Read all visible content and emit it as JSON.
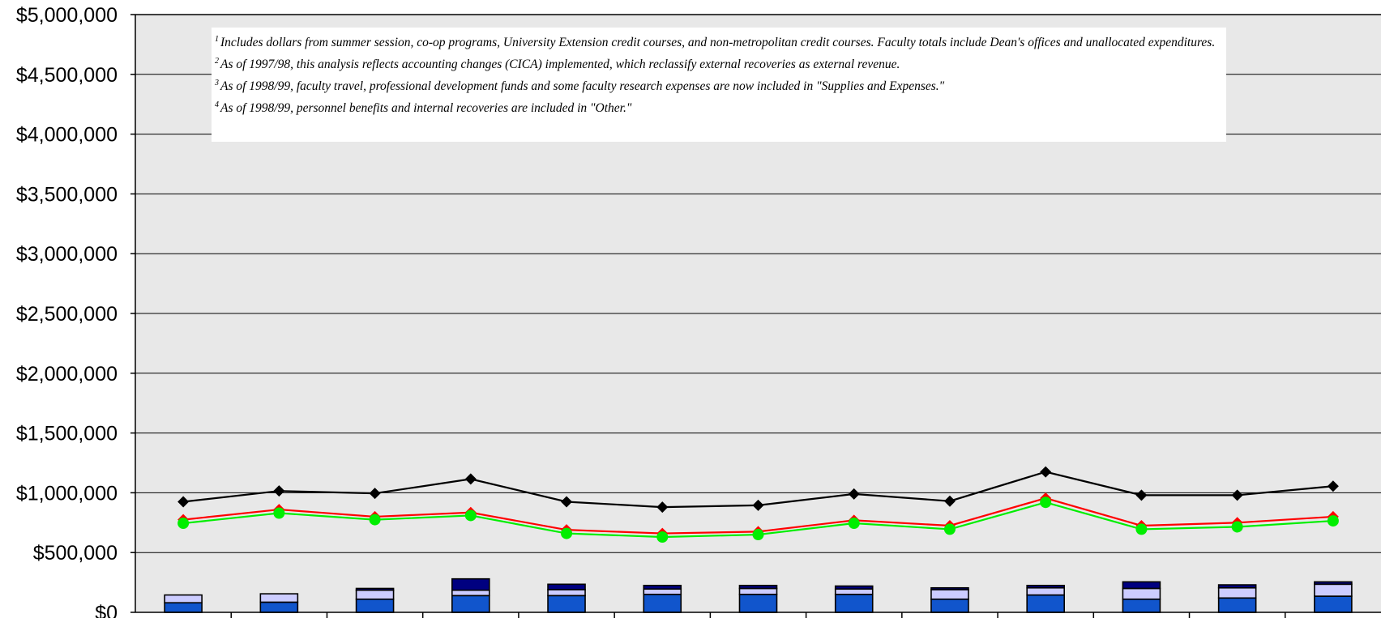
{
  "chart_data": {
    "type": "bar",
    "y_axis": {
      "min": 0,
      "max": 5000000,
      "step": 500000,
      "tick_labels": [
        "$0",
        "$500,000",
        "$1,000,000",
        "$1,500,000",
        "$2,000,000",
        "$2,500,000",
        "$3,000,000",
        "$3,500,000",
        "$4,000,000",
        "$4,500,000",
        "$5,000,000"
      ]
    },
    "grid": true,
    "category_count": 13,
    "stacked_bars": [
      {
        "values": [
          80000,
          65000,
          0
        ]
      },
      {
        "values": [
          85000,
          70000,
          0
        ]
      },
      {
        "values": [
          110000,
          75000,
          15000
        ]
      },
      {
        "values": [
          140000,
          45000,
          95000
        ]
      },
      {
        "values": [
          140000,
          50000,
          45000
        ]
      },
      {
        "values": [
          150000,
          45000,
          30000
        ]
      },
      {
        "values": [
          150000,
          50000,
          25000
        ]
      },
      {
        "values": [
          150000,
          45000,
          25000
        ]
      },
      {
        "values": [
          110000,
          80000,
          15000
        ]
      },
      {
        "values": [
          145000,
          60000,
          20000
        ]
      },
      {
        "values": [
          110000,
          90000,
          55000
        ]
      },
      {
        "values": [
          120000,
          85000,
          25000
        ]
      },
      {
        "values": [
          135000,
          100000,
          20000
        ]
      }
    ],
    "bar_colors": [
      "#1155cc",
      "#ccccff",
      "#000080"
    ],
    "lines": [
      {
        "color": "#000000",
        "marker": "diamond",
        "values": [
          925000,
          1015000,
          995000,
          1115000,
          925000,
          880000,
          895000,
          990000,
          930000,
          1175000,
          980000,
          980000,
          1055000
        ]
      },
      {
        "color": "#ff0000",
        "marker": "diamond",
        "values": [
          775000,
          860000,
          800000,
          835000,
          690000,
          660000,
          675000,
          770000,
          725000,
          955000,
          725000,
          750000,
          800000
        ]
      },
      {
        "color": "#00ee00",
        "marker": "circle",
        "values": [
          745000,
          830000,
          775000,
          810000,
          660000,
          630000,
          650000,
          745000,
          695000,
          920000,
          695000,
          715000,
          765000
        ]
      }
    ],
    "notes": [
      {
        "num": "1",
        "text": "Includes dollars from summer session, co-op programs, University Extension credit courses, and non-metropolitan credit courses.  Faculty totals include Dean's offices and unallocated expenditures."
      },
      {
        "num": "2",
        "text": "As of 1997/98, this analysis reflects accounting changes (CICA) implemented, which reclassify external recoveries as external revenue."
      },
      {
        "num": "3",
        "text": "As of 1998/99, faculty travel, professional development funds and some faculty research expenses are now included in \"Supplies and Expenses.\""
      },
      {
        "num": "4",
        "text": "As of 1998/99, personnel benefits and internal recoveries are included in \"Other.\""
      }
    ]
  },
  "colors": {
    "plot_background": "#e8e8e8",
    "gridline": "#000000"
  }
}
